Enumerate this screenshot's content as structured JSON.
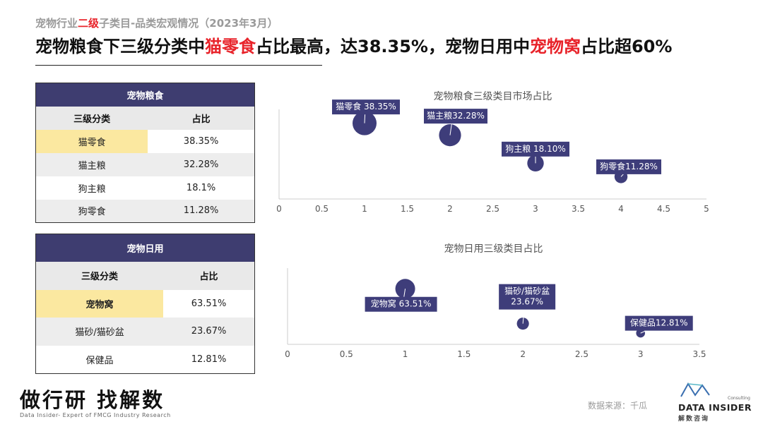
{
  "subtitle": {
    "pre": "宠物行业",
    "highlight": "二级",
    "post": "子类目-品类宏观情况（2023年3月）"
  },
  "headline": {
    "p1": "宠物粮食下三级分类中",
    "h1": "猫零食",
    "p2": "占比最高，达38.35%，宠物日用中",
    "h2": "宠物窝",
    "p3": "占比超60%"
  },
  "table_food": {
    "title": "宠物粮食",
    "col1": "三级分类",
    "col2": "占比",
    "rows": [
      {
        "cat": "猫零食",
        "val": "38.35%"
      },
      {
        "cat": "猫主粮",
        "val": "32.28%"
      },
      {
        "cat": "狗主粮",
        "val": "18.1%"
      },
      {
        "cat": "狗零食",
        "val": "11.28%"
      }
    ]
  },
  "table_daily": {
    "title": "宠物日用",
    "col1": "三级分类",
    "col2": "占比",
    "rows": [
      {
        "cat": "宠物窝",
        "val": "63.51%"
      },
      {
        "cat": "猫砂/猫砂盆",
        "val": "23.67%"
      },
      {
        "cat": "保健品",
        "val": "12.81%"
      }
    ]
  },
  "chart_data": [
    {
      "type": "scatter",
      "title": "宠物粮食三级类目市场占比",
      "x": [
        1,
        2,
        3,
        4
      ],
      "y": [
        38.35,
        32.28,
        18.1,
        11.28
      ],
      "labels": [
        "猫零食 38.35%",
        "猫主粮32.28%",
        "狗主粮 18.10%",
        "狗零食11.28%"
      ],
      "xlim": [
        0,
        5
      ],
      "xticks": [
        "0",
        "0.5",
        "1",
        "1.5",
        "2",
        "2.5",
        "3",
        "3.5",
        "4",
        "4.5",
        "5"
      ],
      "color": "#3e3d7a",
      "grid": false
    },
    {
      "type": "scatter",
      "title": "宠物日用三级类目占比",
      "x": [
        1,
        2,
        3
      ],
      "y": [
        63.51,
        23.67,
        12.81
      ],
      "labels": [
        "宠物窝 63.51%",
        "猫砂/猫砂盆\n23.67%",
        "保健品12.81%"
      ],
      "xlim": [
        0,
        3.5
      ],
      "xticks": [
        "0",
        "0.5",
        "1",
        "1.5",
        "2",
        "2.5",
        "3",
        "3.5"
      ],
      "color": "#3e3d7a",
      "grid": false
    }
  ],
  "footer": {
    "slogan": "做行研 找解数",
    "tagline": "Data Insider- Expert of FMCG Industry Research",
    "source": "数据来源：千瓜",
    "logo_name": "DATA INSIDER",
    "logo_cn": "解数咨询",
    "logo_small": "Consulting"
  },
  "colors": {
    "accent_red": "#e8232a",
    "navy": "#3e3d70",
    "highlight_yellow": "#fbe8a0"
  }
}
